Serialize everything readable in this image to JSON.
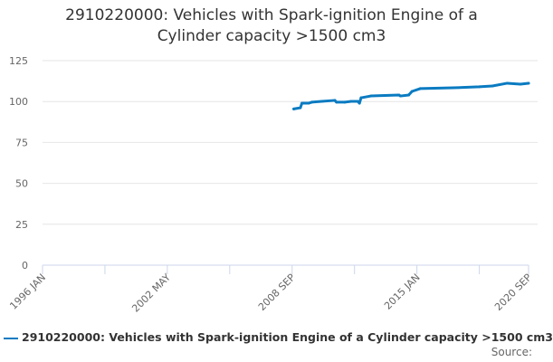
{
  "chart_data": {
    "type": "line",
    "title": "2910220000: Vehicles with Spark-ignition Engine of a Cylinder capacity >1500 cm3",
    "xlabel": "",
    "ylabel": "",
    "x_tick_labels": [
      "1996 JAN",
      "2002 MAY",
      "2008 SEP",
      "2015 JAN",
      "2020 SEP"
    ],
    "xlim": [
      "1996-01",
      "2020-09"
    ],
    "ylim": [
      0,
      125
    ],
    "y_ticks": [
      0,
      25,
      50,
      75,
      100,
      125
    ],
    "grid": true,
    "legend": "bottom",
    "colors": {
      "series": "#0a7bc1"
    },
    "series": [
      {
        "name": "2910220000: Vehicles with Spark-ignition Engine of a Cylinder capacity >1500 cm3",
        "x": [
          "2008-10",
          "2009-02",
          "2009-03",
          "2009-07",
          "2009-09",
          "2010-03",
          "2010-11",
          "2010-12",
          "2011-05",
          "2011-09",
          "2012-01",
          "2012-02",
          "2012-03",
          "2012-09",
          "2014-02",
          "2014-03",
          "2014-08",
          "2014-10",
          "2015-03",
          "2016-11",
          "2018-03",
          "2018-11",
          "2019-08",
          "2020-04",
          "2020-09"
        ],
        "values": [
          95.5,
          96.2,
          99.0,
          99.0,
          99.6,
          100.1,
          100.7,
          99.6,
          99.6,
          100.1,
          100.1,
          99.0,
          102.3,
          103.4,
          104.0,
          103.4,
          104.0,
          106.2,
          107.9,
          108.4,
          109.0,
          109.5,
          111.2,
          110.6,
          111.2
        ]
      }
    ]
  },
  "source_label": "Source:"
}
